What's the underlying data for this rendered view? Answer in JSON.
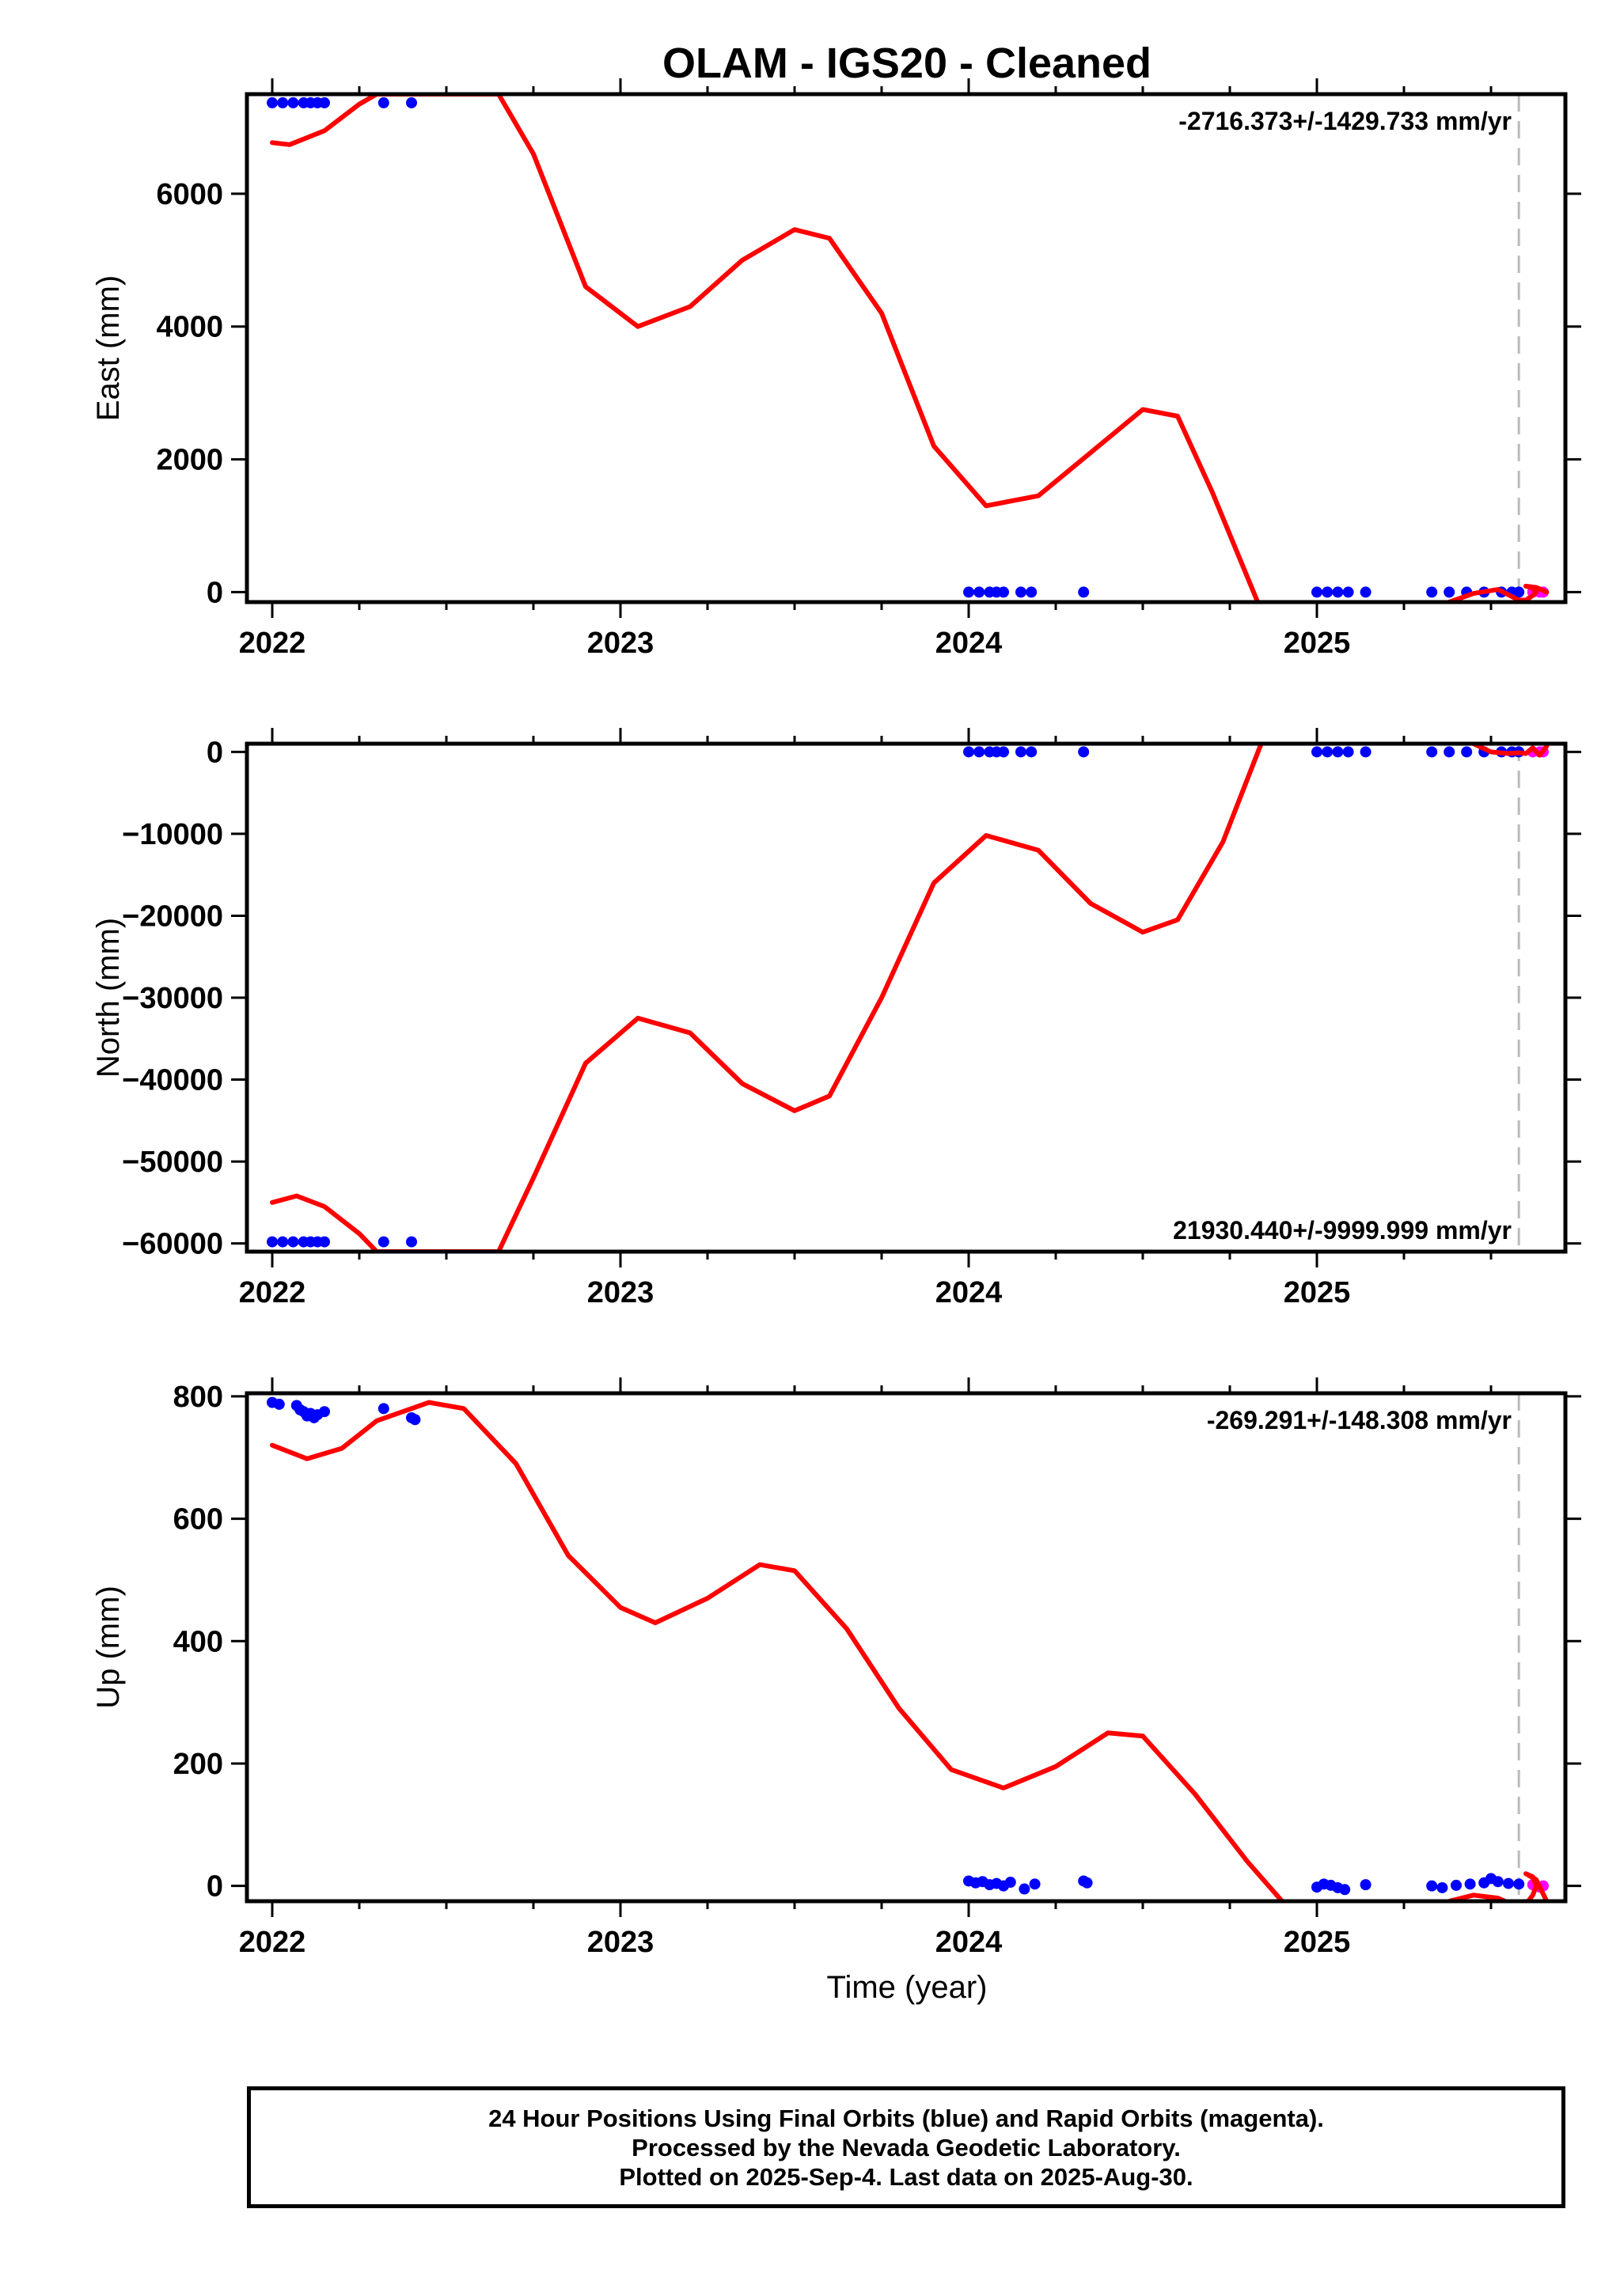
{
  "chart_data": {
    "title": "OLAM  - IGS20 - Cleaned",
    "type": "scatter",
    "xlabel": "Time (year)",
    "xlim": [
      1957.96,
      2025.72
    ],
    "x_ticks": [
      2022,
      2023,
      2024,
      2025
    ],
    "x_tick_labels": [
      "2022",
      "2023",
      "2024",
      "2025"
    ],
    "last_data_line_x": 2025.58,
    "colors": {
      "final": "#0000ff",
      "rapid": "#ff00ff",
      "model": "#ff0000",
      "last_data": "#bbbbbb"
    },
    "panels": [
      {
        "ylabel": "East (mm)",
        "ylim": [
          -150,
          7500
        ],
        "y_ticks": [
          0,
          2000,
          4000,
          6000
        ],
        "y_tick_labels": [
          "0",
          "2000",
          "4000",
          "6000"
        ],
        "rate_text": "-2716.373+/-1429.733 mm/yr",
        "rate_position": "top-right",
        "final_points": [
          [
            2022.0,
            7370
          ],
          [
            2022.03,
            7370
          ],
          [
            2022.06,
            7370
          ],
          [
            2022.09,
            7370
          ],
          [
            2022.11,
            7370
          ],
          [
            2022.13,
            7370
          ],
          [
            2022.15,
            7370
          ],
          [
            2022.32,
            7370
          ],
          [
            2022.4,
            7370
          ],
          [
            2024.0,
            0
          ],
          [
            2024.03,
            0
          ],
          [
            2024.06,
            0
          ],
          [
            2024.08,
            0
          ],
          [
            2024.1,
            0
          ],
          [
            2024.15,
            0
          ],
          [
            2024.18,
            0
          ],
          [
            2024.33,
            0
          ],
          [
            2025.0,
            0
          ],
          [
            2025.03,
            0
          ],
          [
            2025.06,
            0
          ],
          [
            2025.09,
            0
          ],
          [
            2025.14,
            0
          ],
          [
            2025.33,
            0
          ],
          [
            2025.38,
            0
          ],
          [
            2025.43,
            0
          ],
          [
            2025.48,
            0
          ],
          [
            2025.53,
            0
          ],
          [
            2025.56,
            0
          ],
          [
            2025.58,
            0
          ]
        ],
        "rapid_points": [
          [
            2025.62,
            0
          ],
          [
            2025.64,
            0
          ],
          [
            2025.65,
            0
          ]
        ],
        "model_curve": [
          [
            2022.0,
            6770
          ],
          [
            2022.05,
            6740
          ],
          [
            2022.15,
            6950
          ],
          [
            2022.25,
            7350
          ],
          [
            2022.3,
            7500
          ],
          [
            2022.65,
            7500
          ],
          [
            2022.75,
            6600
          ],
          [
            2022.9,
            4600
          ],
          [
            2023.05,
            4000
          ],
          [
            2023.2,
            4300
          ],
          [
            2023.35,
            5000
          ],
          [
            2023.5,
            5460
          ],
          [
            2023.6,
            5330
          ],
          [
            2023.75,
            4200
          ],
          [
            2023.9,
            2200
          ],
          [
            2024.05,
            1300
          ],
          [
            2024.2,
            1450
          ],
          [
            2024.35,
            2100
          ],
          [
            2024.5,
            2750
          ],
          [
            2024.6,
            2650
          ],
          [
            2024.7,
            1500
          ],
          [
            2024.83,
            -150
          ]
        ],
        "model_curve_tail": [
          [
            2025.38,
            -150
          ],
          [
            2025.45,
            -20
          ],
          [
            2025.52,
            40
          ],
          [
            2025.58,
            -120
          ],
          [
            2025.6,
            -120
          ],
          [
            2025.62,
            -50
          ],
          [
            2025.63,
            0
          ],
          [
            2025.62,
            60
          ],
          [
            2025.6,
            90
          ],
          [
            2025.63,
            70
          ],
          [
            2025.66,
            0
          ]
        ]
      },
      {
        "ylabel": "North (mm)",
        "ylim": [
          -61000,
          1000
        ],
        "y_ticks": [
          0,
          -10000,
          -20000,
          -30000,
          -40000,
          -50000,
          -60000
        ],
        "y_tick_labels": [
          "0",
          "−10000",
          "−20000",
          "−30000",
          "−40000",
          "−50000",
          "−60000"
        ],
        "rate_text": "21930.440+/-9999.999 mm/yr",
        "rate_position": "bottom-right",
        "final_points": [
          [
            2022.0,
            -59800
          ],
          [
            2022.03,
            -59800
          ],
          [
            2022.06,
            -59800
          ],
          [
            2022.09,
            -59800
          ],
          [
            2022.11,
            -59800
          ],
          [
            2022.13,
            -59800
          ],
          [
            2022.15,
            -59800
          ],
          [
            2022.32,
            -59800
          ],
          [
            2022.4,
            -59800
          ],
          [
            2024.0,
            0
          ],
          [
            2024.03,
            0
          ],
          [
            2024.06,
            0
          ],
          [
            2024.08,
            0
          ],
          [
            2024.1,
            0
          ],
          [
            2024.15,
            0
          ],
          [
            2024.18,
            0
          ],
          [
            2024.33,
            0
          ],
          [
            2025.0,
            0
          ],
          [
            2025.03,
            0
          ],
          [
            2025.06,
            0
          ],
          [
            2025.09,
            0
          ],
          [
            2025.14,
            0
          ],
          [
            2025.33,
            0
          ],
          [
            2025.38,
            0
          ],
          [
            2025.43,
            0
          ],
          [
            2025.48,
            0
          ],
          [
            2025.53,
            0
          ],
          [
            2025.56,
            0
          ],
          [
            2025.58,
            0
          ]
        ],
        "rapid_points": [
          [
            2025.62,
            0
          ],
          [
            2025.64,
            0
          ],
          [
            2025.65,
            0
          ]
        ],
        "model_curve": [
          [
            2022.0,
            -55000
          ],
          [
            2022.07,
            -54200
          ],
          [
            2022.15,
            -55500
          ],
          [
            2022.25,
            -58800
          ],
          [
            2022.3,
            -61000
          ],
          [
            2022.65,
            -61000
          ],
          [
            2022.75,
            -52000
          ],
          [
            2022.9,
            -38000
          ],
          [
            2023.05,
            -32500
          ],
          [
            2023.2,
            -34300
          ],
          [
            2023.35,
            -40500
          ],
          [
            2023.5,
            -43800
          ],
          [
            2023.6,
            -42000
          ],
          [
            2023.75,
            -30000
          ],
          [
            2023.9,
            -16000
          ],
          [
            2024.05,
            -10200
          ],
          [
            2024.2,
            -12000
          ],
          [
            2024.35,
            -18500
          ],
          [
            2024.5,
            -22000
          ],
          [
            2024.6,
            -20500
          ],
          [
            2024.73,
            -11000
          ],
          [
            2024.84,
            1000
          ]
        ],
        "model_curve_tail": [
          [
            2025.45,
            1000
          ],
          [
            2025.5,
            0
          ],
          [
            2025.55,
            -200
          ],
          [
            2025.58,
            -100
          ],
          [
            2025.6,
            -200
          ],
          [
            2025.62,
            500
          ],
          [
            2025.63,
            0
          ],
          [
            2025.64,
            -400
          ],
          [
            2025.66,
            700
          ]
        ]
      },
      {
        "ylabel": "Up (mm)",
        "ylim": [
          -25,
          805
        ],
        "y_ticks": [
          0,
          200,
          400,
          600,
          800
        ],
        "y_tick_labels": [
          "0",
          "200",
          "400",
          "600",
          "800"
        ],
        "rate_text": "-269.291+/-148.308 mm/yr",
        "rate_position": "top-right",
        "final_points": [
          [
            2022.0,
            790
          ],
          [
            2022.02,
            787
          ],
          [
            2022.07,
            785
          ],
          [
            2022.08,
            778
          ],
          [
            2022.09,
            775
          ],
          [
            2022.1,
            768
          ],
          [
            2022.11,
            772
          ],
          [
            2022.12,
            765
          ],
          [
            2022.13,
            770
          ],
          [
            2022.15,
            775
          ],
          [
            2022.32,
            780
          ],
          [
            2022.4,
            765
          ],
          [
            2022.41,
            762
          ],
          [
            2024.0,
            8
          ],
          [
            2024.02,
            5
          ],
          [
            2024.04,
            7
          ],
          [
            2024.06,
            2
          ],
          [
            2024.08,
            4
          ],
          [
            2024.1,
            0
          ],
          [
            2024.12,
            6
          ],
          [
            2024.16,
            -5
          ],
          [
            2024.19,
            3
          ],
          [
            2024.33,
            8
          ],
          [
            2024.34,
            5
          ],
          [
            2025.0,
            -2
          ],
          [
            2025.02,
            3
          ],
          [
            2025.04,
            1
          ],
          [
            2025.06,
            -3
          ],
          [
            2025.08,
            -6
          ],
          [
            2025.14,
            2
          ],
          [
            2025.33,
            0
          ],
          [
            2025.36,
            -3
          ],
          [
            2025.4,
            1
          ],
          [
            2025.44,
            3
          ],
          [
            2025.48,
            5
          ],
          [
            2025.5,
            12
          ],
          [
            2025.52,
            7
          ],
          [
            2025.55,
            4
          ],
          [
            2025.58,
            3
          ]
        ],
        "rapid_points": [
          [
            2025.62,
            2
          ],
          [
            2025.64,
            -2
          ],
          [
            2025.65,
            0
          ]
        ],
        "model_curve": [
          [
            2022.0,
            720
          ],
          [
            2022.1,
            698
          ],
          [
            2022.2,
            715
          ],
          [
            2022.3,
            760
          ],
          [
            2022.45,
            790
          ],
          [
            2022.55,
            780
          ],
          [
            2022.7,
            690
          ],
          [
            2022.85,
            540
          ],
          [
            2023.0,
            455
          ],
          [
            2023.1,
            430
          ],
          [
            2023.25,
            470
          ],
          [
            2023.4,
            525
          ],
          [
            2023.5,
            515
          ],
          [
            2023.65,
            420
          ],
          [
            2023.8,
            290
          ],
          [
            2023.95,
            190
          ],
          [
            2024.1,
            160
          ],
          [
            2024.25,
            195
          ],
          [
            2024.4,
            250
          ],
          [
            2024.5,
            245
          ],
          [
            2024.65,
            150
          ],
          [
            2024.8,
            40
          ],
          [
            2024.9,
            -25
          ]
        ],
        "model_curve_tail": [
          [
            2025.38,
            -25
          ],
          [
            2025.45,
            -15
          ],
          [
            2025.52,
            -20
          ],
          [
            2025.58,
            -35
          ],
          [
            2025.6,
            -30
          ],
          [
            2025.62,
            -15
          ],
          [
            2025.63,
            0
          ],
          [
            2025.62,
            15
          ],
          [
            2025.6,
            20
          ],
          [
            2025.63,
            10
          ],
          [
            2025.66,
            -25
          ]
        ]
      }
    ]
  },
  "footer": {
    "line1": "24 Hour Positions Using Final Orbits (blue) and Rapid Orbits (magenta).",
    "line2": "Processed by the Nevada Geodetic Laboratory.",
    "line3": "Plotted on 2025-Sep-4. Last data on 2025-Aug-30."
  }
}
